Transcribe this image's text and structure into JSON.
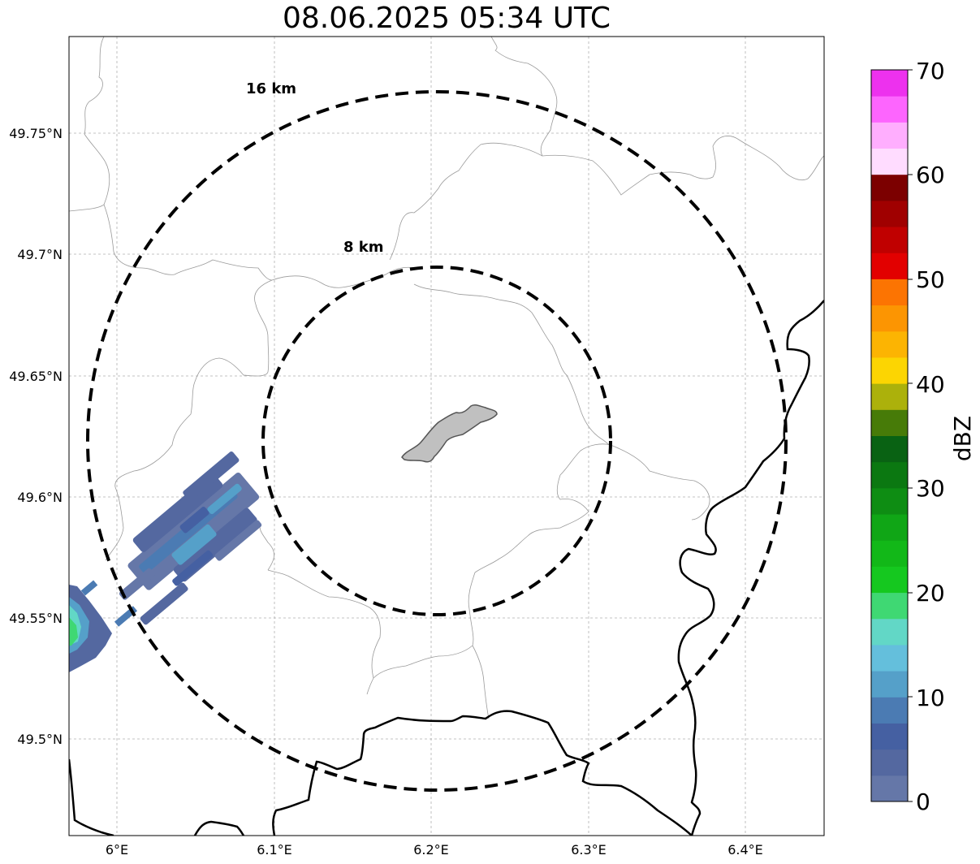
{
  "title": "08.06.2025 05:34 UTC",
  "map": {
    "lon_ticks": [
      "6°E",
      "6.1°E",
      "6.2°E",
      "6.3°E",
      "6.4°E"
    ],
    "lat_ticks": [
      "49.75°N",
      "49.7°N",
      "49.65°N",
      "49.6°N",
      "49.55°N",
      "49.5°N"
    ],
    "center_lon": 6.2,
    "center_lat": 49.623,
    "rings": [
      {
        "label": "16 km",
        "radius_km": 16
      },
      {
        "label": "8 km",
        "radius_km": 8
      }
    ],
    "highlighted_area_color": "#c0c0c0"
  },
  "colorbar": {
    "label": "dBZ",
    "ticks": [
      "0",
      "10",
      "20",
      "30",
      "40",
      "50",
      "60",
      "70"
    ],
    "min": 0,
    "max": 70,
    "colors": [
      "#6577a8",
      "#5468a0",
      "#4560a2",
      "#4b7bb3",
      "#55a0c9",
      "#64bfdc",
      "#62d7c6",
      "#3fd873",
      "#15c81f",
      "#12b818",
      "#10a616",
      "#0e8d13",
      "#0b7811",
      "#096213",
      "#477b08",
      "#acb10b",
      "#fcd502",
      "#fcb402",
      "#fc9502",
      "#fc7402",
      "#e20000",
      "#c00000",
      "#a00000",
      "#7c0000",
      "#ffdcff",
      "#ffaefe",
      "#fd65fe",
      "#ed31ee"
    ]
  }
}
